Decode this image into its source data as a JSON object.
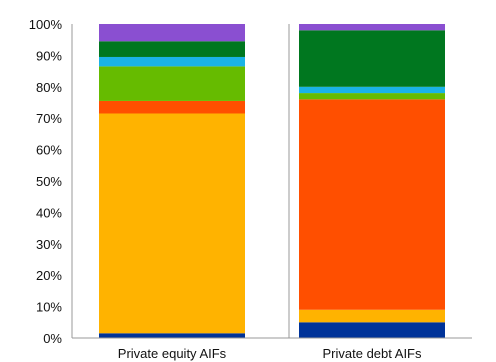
{
  "chart_data": {
    "type": "bar",
    "stacked": true,
    "percent": true,
    "categories": [
      "Private equity AIFs",
      "Private debt AIFs"
    ],
    "y_ticks": [
      "0%",
      "10%",
      "20%",
      "30%",
      "40%",
      "50%",
      "60%",
      "70%",
      "80%",
      "90%",
      "100%"
    ],
    "ylim": [
      0,
      100
    ],
    "grid": "none",
    "legend": "none",
    "series": [
      {
        "color": "#003399",
        "values": [
          1.5,
          5
        ]
      },
      {
        "color": "#ffb300",
        "values": [
          70,
          4
        ]
      },
      {
        "color": "#ff4f00",
        "values": [
          4,
          67
        ]
      },
      {
        "color": "#66bb00",
        "values": [
          11,
          2
        ]
      },
      {
        "color": "#1ab3e6",
        "values": [
          3,
          2
        ]
      },
      {
        "color": "#00771f",
        "values": [
          5,
          18
        ]
      },
      {
        "color": "#8a4fd1",
        "values": [
          5.5,
          2
        ]
      }
    ]
  }
}
